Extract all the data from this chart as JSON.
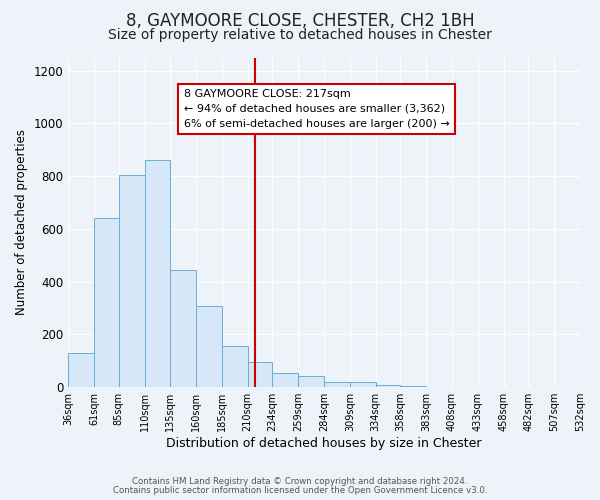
{
  "title": "8, GAYMOORE CLOSE, CHESTER, CH2 1BH",
  "subtitle": "Size of property relative to detached houses in Chester",
  "xlabel": "Distribution of detached houses by size in Chester",
  "ylabel": "Number of detached properties",
  "bin_edges": [
    36,
    61,
    85,
    110,
    135,
    160,
    185,
    210,
    234,
    259,
    284,
    309,
    334,
    358,
    383,
    408,
    433,
    458,
    482,
    507,
    532
  ],
  "bin_counts": [
    130,
    640,
    805,
    860,
    445,
    308,
    158,
    95,
    53,
    42,
    18,
    20,
    8,
    5,
    2,
    0,
    0,
    0,
    0,
    0
  ],
  "bar_facecolor": "#d6e8f7",
  "bar_edgecolor": "#6aaed6",
  "vline_x": 217,
  "vline_color": "#cc0000",
  "annotation_text": "8 GAYMOORE CLOSE: 217sqm\n← 94% of detached houses are smaller (3,362)\n6% of semi-detached houses are larger (200) →",
  "annotation_box_edgecolor": "#cc0000",
  "annotation_box_facecolor": "#ffffff",
  "ylim": [
    0,
    1250
  ],
  "yticks": [
    0,
    200,
    400,
    600,
    800,
    1000,
    1200
  ],
  "background_color": "#eef2f9",
  "plot_bg_color": "#eef2f9",
  "footer_line1": "Contains HM Land Registry data © Crown copyright and database right 2024.",
  "footer_line2": "Contains public sector information licensed under the Open Government Licence v3.0.",
  "title_fontsize": 12,
  "subtitle_fontsize": 10,
  "tick_label_fontsize": 7,
  "ylabel_fontsize": 8.5,
  "xlabel_fontsize": 9,
  "annotation_fontsize": 8
}
